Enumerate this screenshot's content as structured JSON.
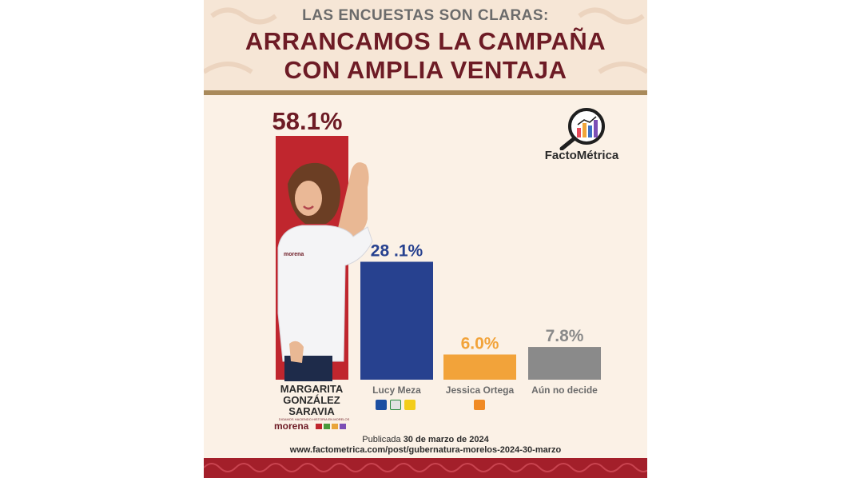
{
  "header": {
    "kicker": "LAS ENCUESTAS SON CLARAS:",
    "headline_line1": "ARRANCAMOS LA CAMPAÑA",
    "headline_line2": "CON AMPLIA VENTAJA"
  },
  "brand": {
    "name": "FactoMétrica"
  },
  "candidate": {
    "name_lines": [
      "MARGARITA",
      "GONZÁLEZ",
      "SARAVIA"
    ],
    "party": "morena",
    "party_slogan": "DIGAMOS HACIENDO HISTORIA EN MORELOS",
    "shirt_logo": "morena"
  },
  "chart_data": {
    "type": "bar",
    "categories": [
      "MARGARITA GONZÁLEZ SARAVIA",
      "Lucy Meza",
      "Jessica Ortega",
      "Aún no decide"
    ],
    "values": [
      58.1,
      28.1,
      6.0,
      7.8
    ],
    "value_labels": [
      "58.1%",
      "28 .1%",
      "6.0%",
      "7.8%"
    ],
    "colors": [
      "#c0262e",
      "#27418f",
      "#f2a33a",
      "#8a8a8a"
    ],
    "label_colors": [
      "#6d1b25",
      "#27418f",
      "#f2a33a",
      "#8a8a8a"
    ],
    "ylim": [
      0,
      58.1
    ],
    "grid": false
  },
  "party_logos": {
    "lucy": [
      "PAN",
      "PRI",
      "PRD"
    ],
    "jessica": [
      "MC"
    ]
  },
  "footer": {
    "published_prefix": "Publicada",
    "published_date": "30 de marzo de 2024",
    "url": "www.factometrica.com/post/gubernatura-morelos-2024-30-marzo"
  }
}
